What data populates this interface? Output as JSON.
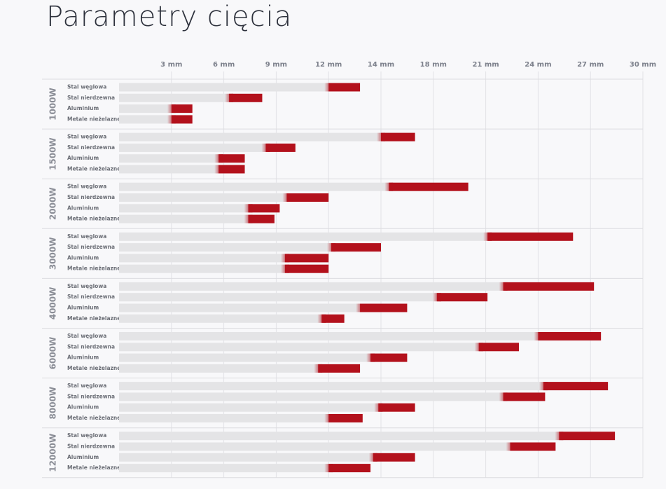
{
  "chart_data": {
    "type": "range-bar",
    "title": "Parametry cięcia",
    "xticks": [
      {
        "value": 3,
        "label": "3 mm"
      },
      {
        "value": 6,
        "label": "6 mm"
      },
      {
        "value": 9,
        "label": "9 mm"
      },
      {
        "value": 12,
        "label": "12 mm"
      },
      {
        "value": 14,
        "label": "14 mm"
      },
      {
        "value": 18,
        "label": "18 mm"
      },
      {
        "value": 21,
        "label": "21 mm"
      },
      {
        "value": 24,
        "label": "24 mm"
      },
      {
        "value": 27,
        "label": "27 mm"
      },
      {
        "value": 30,
        "label": "30 mm"
      }
    ],
    "grid": true,
    "base_color": "#e4e4e6",
    "color": "#b3111c",
    "groups": [
      {
        "name": "1000W",
        "categories": [
          "Stal węglowa",
          "Stal nierdzewna",
          "Aluminium",
          "Metale nieżelazne"
        ],
        "start": [
          12,
          6.3,
          3,
          3
        ],
        "values": [
          13.2,
          8.2,
          4.2,
          4.2
        ]
      },
      {
        "name": "1500W",
        "categories": [
          "Stal węglowa",
          "Stal nierdzewna",
          "Aluminium",
          "Metale nieżelazne"
        ],
        "start": [
          14,
          8.4,
          5.7,
          5.7
        ],
        "values": [
          16.6,
          10.1,
          7.2,
          7.2
        ]
      },
      {
        "name": "2000W",
        "categories": [
          "Stal węglowa",
          "Stal nierdzewna",
          "Aluminium",
          "Metale nieżelazne"
        ],
        "start": [
          14.6,
          9.6,
          7.4,
          7.4
        ],
        "values": [
          20,
          12,
          9.2,
          8.9
        ]
      },
      {
        "name": "3000W",
        "categories": [
          "Stal węglowa",
          "Stal nierdzewna",
          "Aluminium",
          "Metale nieżelazne"
        ],
        "start": [
          21.1,
          12.1,
          9.5,
          9.5
        ],
        "values": [
          26,
          14,
          12,
          12
        ]
      },
      {
        "name": "4000W",
        "categories": [
          "Stal węglowa",
          "Stal nierdzewna",
          "Aluminium",
          "Metale nieżelazne"
        ],
        "start": [
          22,
          18.2,
          13.2,
          11.6
        ],
        "values": [
          27.2,
          21.1,
          16,
          12.6
        ]
      },
      {
        "name": "6000W",
        "categories": [
          "Stal węglowa",
          "Stal nierdzewna",
          "Aluminium",
          "Metale nieżelazne"
        ],
        "start": [
          24,
          20.6,
          13.6,
          11.4
        ],
        "values": [
          27.6,
          22.9,
          16,
          13.2
        ]
      },
      {
        "name": "8000W",
        "categories": [
          "Stal węglowa",
          "Stal nierdzewna",
          "Aluminium",
          "Metale nieżelazne"
        ],
        "start": [
          24.3,
          22,
          13.9,
          12
        ],
        "values": [
          28,
          24.4,
          16.6,
          13.3
        ]
      },
      {
        "name": "12000W",
        "categories": [
          "Stal węglowa",
          "Stal nierdzewna",
          "Aluminium",
          "Metale nieżelazne"
        ],
        "start": [
          25.2,
          22.4,
          13.7,
          12
        ],
        "values": [
          28.4,
          25,
          16.6,
          13.6
        ]
      }
    ]
  }
}
